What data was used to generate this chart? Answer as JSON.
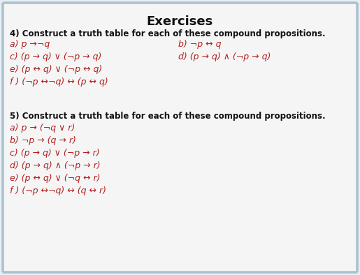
{
  "title": "Exercises",
  "title_color": "#222222",
  "title_fontsize": 13,
  "bg_color": "#e8edf2",
  "box_color": "#f5f5f5",
  "border_color": "#a8c0d0",
  "red_color": "#b22020",
  "black_color": "#111111",
  "section4_header": "4) Construct a truth table for each of these compound propositions.",
  "section4_items_left": [
    "a) p →¬q",
    "c) (p → q) ∨ (¬p → q)",
    "e) (p ↔ q) ∨ (¬p ↔ q)",
    "f ) (¬p ↔¬q) ↔ (p ↔ q)"
  ],
  "section4_items_right": [
    "b) ¬p ↔ q",
    "d) (p → q) ∧ (¬p → q)",
    "",
    ""
  ],
  "section5_header": "5) Construct a truth table for each of these compound propositions.",
  "section5_items": [
    "a) p → (¬q ∨ r)",
    "b) ¬p → (q → r)",
    "c) (p → q) ∨ (¬p → r)",
    "d) (p → q) ∧ (¬p → r)",
    "e) (p ↔ q) ∨ (¬q ↔ r)",
    "f ) (¬p ↔¬q) ↔ (q ↔ r)"
  ],
  "font_size_header": 8.5,
  "font_size_items": 9.0,
  "figsize": [
    5.15,
    3.94
  ],
  "dpi": 100
}
